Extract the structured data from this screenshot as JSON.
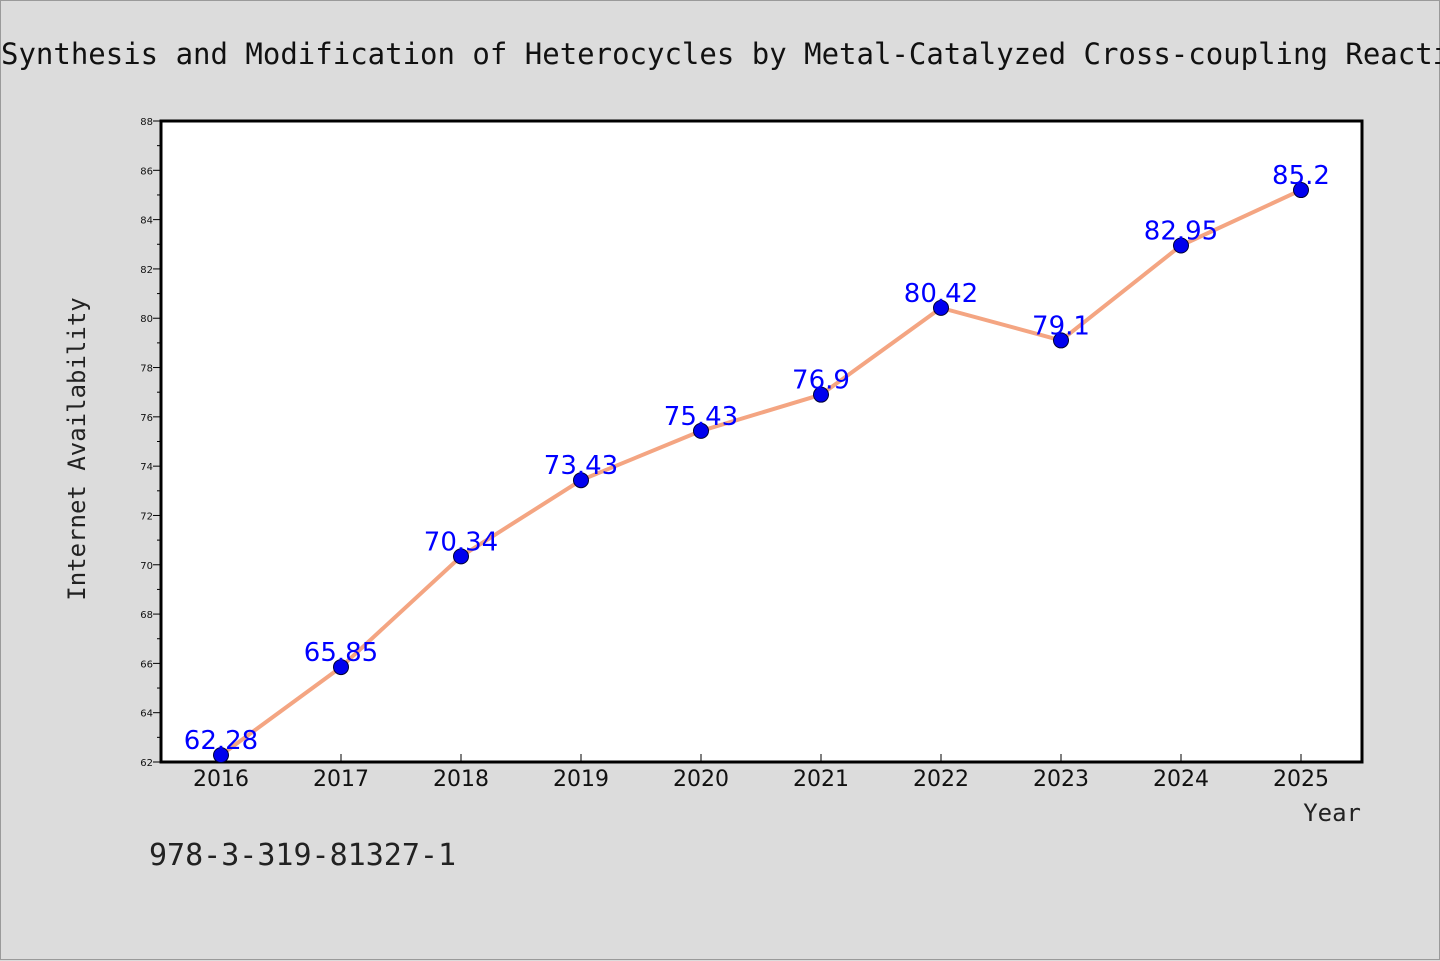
{
  "title": "Synthesis and Modification of Heterocycles by Metal-Catalyzed Cross-coupling Reactions",
  "note": "978-3-319-81327-1",
  "colors": {
    "line": "#f4a582",
    "marker": "#0000ee",
    "label": "#0000ff",
    "background": "#dcdcdc",
    "plot": "#ffffff"
  },
  "chart_data": {
    "type": "line",
    "title": "Synthesis and Modification of Heterocycles by Metal-Catalyzed Cross-coupling Reactions",
    "xlabel": "Year",
    "ylabel": "Internet Availability",
    "categories": [
      "2016",
      "2017",
      "2018",
      "2019",
      "2020",
      "2021",
      "2022",
      "2023",
      "2024",
      "2025"
    ],
    "series": [
      {
        "values": [
          62.28,
          65.85,
          70.34,
          73.43,
          75.43,
          76.9,
          80.42,
          79.1,
          82.95,
          85.2
        ]
      }
    ],
    "data_labels": [
      "62.28",
      "65.85",
      "70.34",
      "73.43",
      "75.43",
      "76.9",
      "80.42",
      "79.1",
      "82.95",
      "85.2"
    ],
    "ylim": [
      62,
      88
    ],
    "yticks": [
      "62",
      "64",
      "66",
      "68",
      "70",
      "72",
      "74",
      "76",
      "78",
      "80",
      "82",
      "84",
      "86",
      "88"
    ],
    "grid": false,
    "legend": "none"
  }
}
